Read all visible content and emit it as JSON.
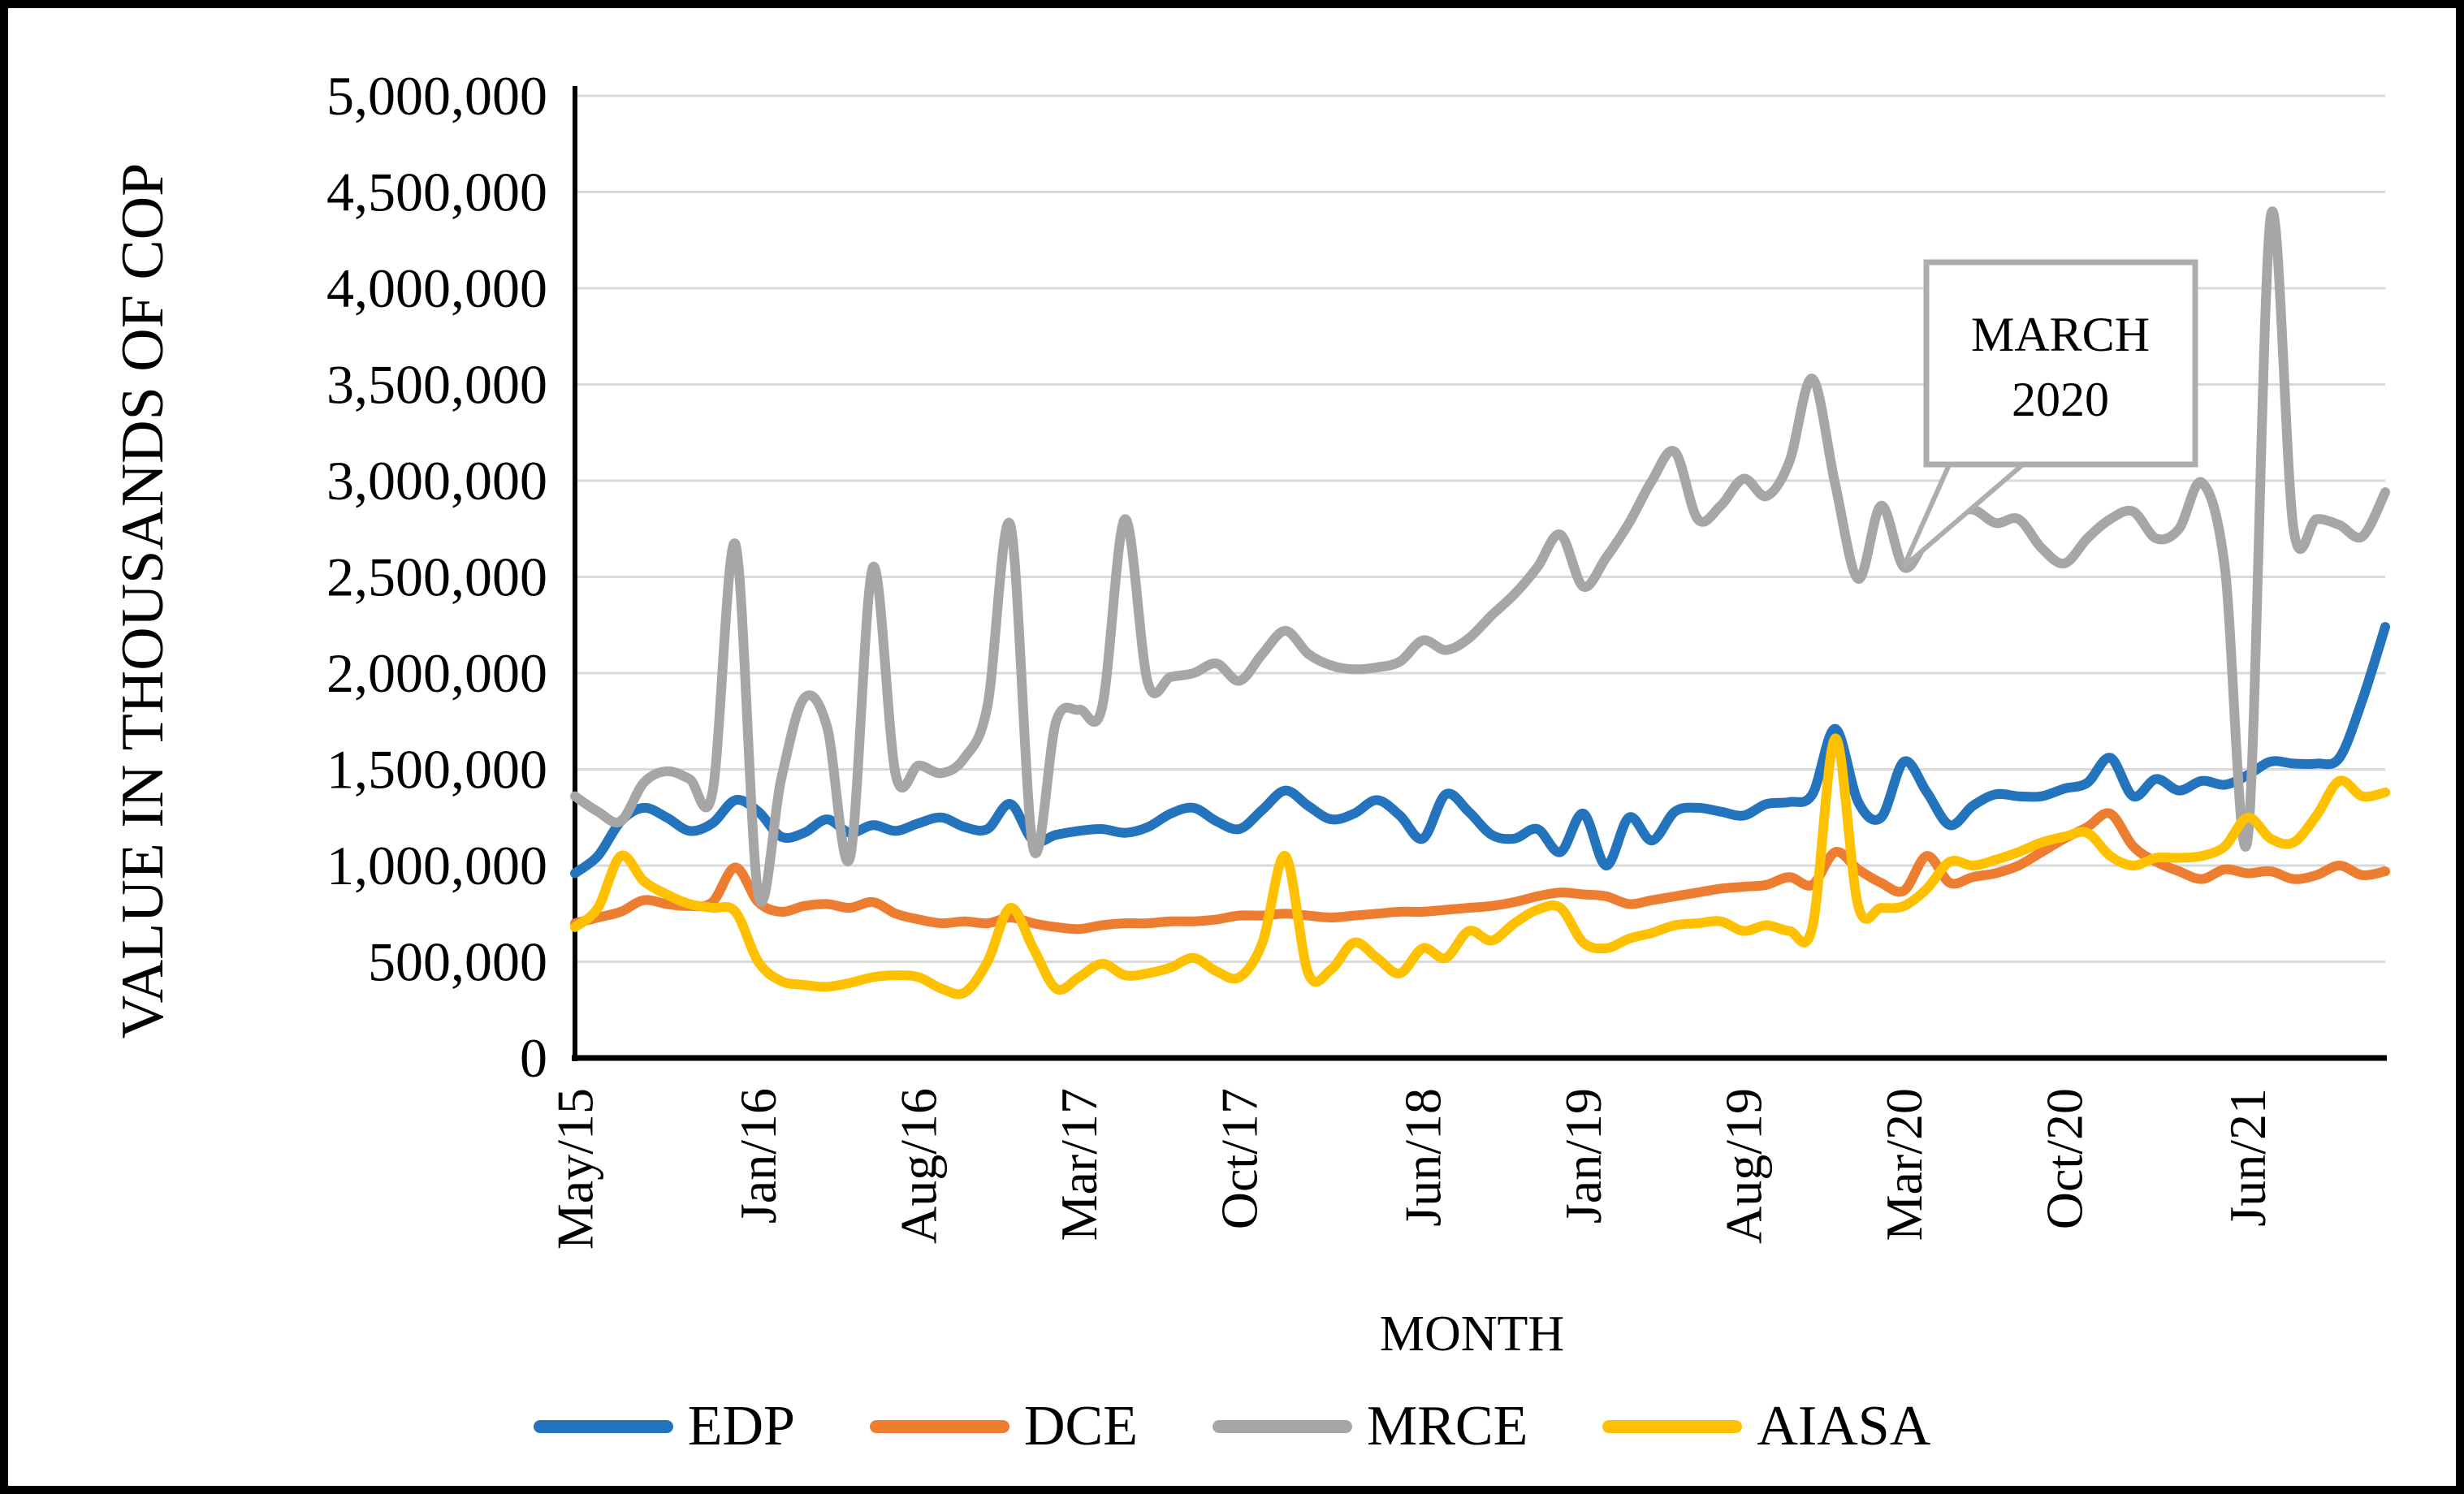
{
  "chart_data": {
    "type": "line",
    "title": "",
    "xlabel": "MONTH",
    "ylabel": "VALUE IN THOUSANDS OF COP",
    "ylim": [
      0,
      5000000
    ],
    "y_tick_step": 500000,
    "y_tick_labels": [
      "0",
      "500,000",
      "1,000,000",
      "1,500,000",
      "2,000,000",
      "2,500,000",
      "3,000,000",
      "3,500,000",
      "4,000,000",
      "4,500,000",
      "5,000,000"
    ],
    "x_tick_months": [
      0,
      8,
      15,
      22,
      29,
      37,
      44,
      51,
      58,
      65,
      73
    ],
    "x_tick_labels": [
      "May/15",
      "Jan/16",
      "Aug/16",
      "Mar/17",
      "Oct/17",
      "Jun/18",
      "Jan/19",
      "Aug/19",
      "Mar/20",
      "Oct/20",
      "Jun/21"
    ],
    "grid": "horizontal",
    "legend_position": "bottom",
    "months": [
      "May/15",
      "Jun/15",
      "Jul/15",
      "Aug/15",
      "Sep/15",
      "Oct/15",
      "Nov/15",
      "Dec/15",
      "Jan/16",
      "Feb/16",
      "Mar/16",
      "Apr/16",
      "May/16",
      "Jun/16",
      "Jul/16",
      "Aug/16",
      "Sep/16",
      "Oct/16",
      "Nov/16",
      "Dec/16",
      "Jan/17",
      "Feb/17",
      "Mar/17",
      "Apr/17",
      "May/17",
      "Jun/17",
      "Jul/17",
      "Aug/17",
      "Sep/17",
      "Oct/17",
      "Nov/17",
      "Dec/17",
      "Jan/18",
      "Feb/18",
      "Mar/18",
      "Apr/18",
      "May/18",
      "Jun/18",
      "Jul/18",
      "Aug/18",
      "Sep/18",
      "Oct/18",
      "Nov/18",
      "Dec/18",
      "Jan/19",
      "Feb/19",
      "Mar/19",
      "Apr/19",
      "May/19",
      "Jun/19",
      "Jul/19",
      "Aug/19",
      "Sep/19",
      "Oct/19",
      "Nov/19",
      "Dec/19",
      "Jan/20",
      "Feb/20",
      "Mar/20",
      "Apr/20",
      "May/20",
      "Jun/20",
      "Jul/20",
      "Aug/20",
      "Sep/20",
      "Oct/20",
      "Nov/20",
      "Dec/20",
      "Jan/21",
      "Feb/21",
      "Mar/21",
      "Apr/21",
      "May/21",
      "Jun/21",
      "Jul/21",
      "Aug/21",
      "Sep/21",
      "Oct/21",
      "Nov/21",
      "Dec/21"
    ],
    "series": [
      {
        "name": "EDP",
        "color": "#2374BC",
        "values": [
          960,
          1050,
          1230,
          1300,
          1250,
          1180,
          1220,
          1340,
          1280,
          1150,
          1170,
          1240,
          1170,
          1210,
          1180,
          1220,
          1250,
          1200,
          1190,
          1320,
          1130,
          1160,
          1180,
          1190,
          1170,
          1200,
          1270,
          1300,
          1230,
          1190,
          1290,
          1390,
          1310,
          1240,
          1270,
          1340,
          1260,
          1140,
          1370,
          1280,
          1160,
          1140,
          1190,
          1070,
          1270,
          1000,
          1250,
          1130,
          1280,
          1300,
          1280,
          1260,
          1320,
          1330,
          1370,
          1710,
          1330,
          1250,
          1540,
          1380,
          1210,
          1310,
          1370,
          1360,
          1360,
          1400,
          1430,
          1560,
          1360,
          1450,
          1390,
          1440,
          1420,
          1470,
          1540,
          1530,
          1530,
          1560,
          1860,
          2240
        ]
      },
      {
        "name": "DCE",
        "color": "#ED7D31",
        "values": [
          700,
          730,
          760,
          820,
          800,
          790,
          810,
          990,
          810,
          760,
          790,
          800,
          780,
          810,
          750,
          720,
          700,
          710,
          700,
          730,
          700,
          680,
          670,
          690,
          700,
          700,
          710,
          710,
          720,
          740,
          740,
          750,
          740,
          730,
          740,
          750,
          760,
          760,
          770,
          780,
          790,
          810,
          840,
          860,
          850,
          840,
          800,
          820,
          840,
          860,
          880,
          890,
          900,
          940,
          900,
          1070,
          980,
          910,
          870,
          1050,
          910,
          940,
          960,
          1000,
          1070,
          1140,
          1200,
          1270,
          1100,
          1020,
          970,
          930,
          980,
          960,
          970,
          930,
          950,
          1000,
          950,
          970
        ]
      },
      {
        "name": "MRCE",
        "color": "#A6A6A6",
        "values": [
          1360,
          1280,
          1230,
          1430,
          1490,
          1450,
          1380,
          2670,
          850,
          1450,
          1870,
          1720,
          1040,
          2550,
          1470,
          1520,
          1480,
          1560,
          1830,
          2770,
          1090,
          1750,
          1810,
          1820,
          2800,
          1950,
          1980,
          2000,
          2050,
          1960,
          2100,
          2220,
          2100,
          2040,
          2020,
          2030,
          2060,
          2170,
          2120,
          2180,
          2300,
          2410,
          2550,
          2720,
          2450,
          2600,
          2780,
          3000,
          3150,
          2800,
          2870,
          3010,
          2920,
          3100,
          3530,
          2980,
          2490,
          2870,
          2550,
          2700,
          2810,
          2850,
          2780,
          2800,
          2650,
          2570,
          2700,
          2800,
          2840,
          2700,
          2750,
          2990,
          2550,
          1140,
          4370,
          2750,
          2800,
          2770,
          2710,
          2940
        ]
      },
      {
        "name": "AIASA",
        "color": "#FFC000",
        "values": [
          680,
          780,
          1050,
          920,
          850,
          800,
          780,
          760,
          500,
          400,
          380,
          370,
          390,
          420,
          430,
          420,
          360,
          340,
          500,
          780,
          570,
          360,
          420,
          490,
          430,
          440,
          470,
          520,
          450,
          420,
          600,
          1050,
          440,
          460,
          600,
          520,
          440,
          570,
          520,
          660,
          610,
          700,
          770,
          780,
          600,
          570,
          620,
          650,
          690,
          700,
          710,
          660,
          690,
          660,
          680,
          1660,
          790,
          780,
          790,
          880,
          1020,
          1000,
          1030,
          1070,
          1120,
          1150,
          1170,
          1050,
          1000,
          1040,
          1040,
          1050,
          1100,
          1250,
          1140,
          1120,
          1260,
          1440,
          1360,
          1380
        ]
      }
    ],
    "annotation": {
      "line1": "MARCH",
      "line2": "2020",
      "target_month": "Mar/20",
      "target_series": "MRCE"
    },
    "colors": {
      "grid": "#D9D9D9",
      "axis": "#000000",
      "callout_border": "#ADADAD"
    }
  }
}
